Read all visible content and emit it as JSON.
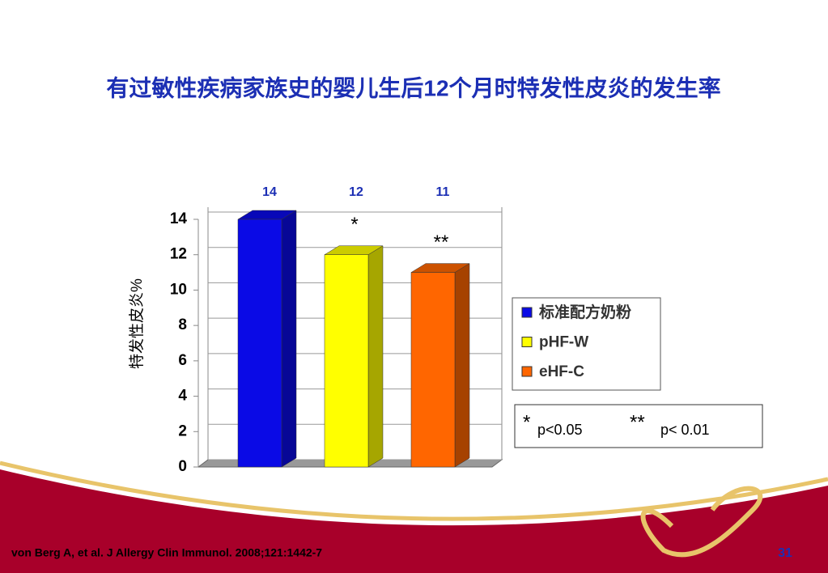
{
  "chart_data": {
    "type": "bar3d",
    "title": "有过敏性疾病家族史的婴儿生后12个月时特发性皮炎的发生率",
    "y_label": "特发性皮炎%",
    "categories": [
      null
    ],
    "series": [
      {
        "name": "标准配方奶粉",
        "color": "#0a0ae6",
        "values": [
          14
        ]
      },
      {
        "name": "pHF-W",
        "color": "#ffff00",
        "values": [
          12
        ]
      },
      {
        "name": "eHF-C",
        "color": "#ff6600",
        "values": [
          11
        ]
      }
    ],
    "annotations": [
      null,
      "*",
      "**"
    ],
    "ylim": [
      0,
      14
    ],
    "yticks": [
      0,
      2,
      4,
      6,
      8,
      10,
      12,
      14
    ],
    "grid": true,
    "legend": "right"
  },
  "significance_legend": [
    {
      "symbol": "*",
      "text": "p<0.05"
    },
    {
      "symbol": "**",
      "text": "p< 0.01"
    }
  ],
  "citation": "von Berg A, et al. J Allergy  Clin Immunol. 2008;121:1442-7",
  "page_number": "31"
}
